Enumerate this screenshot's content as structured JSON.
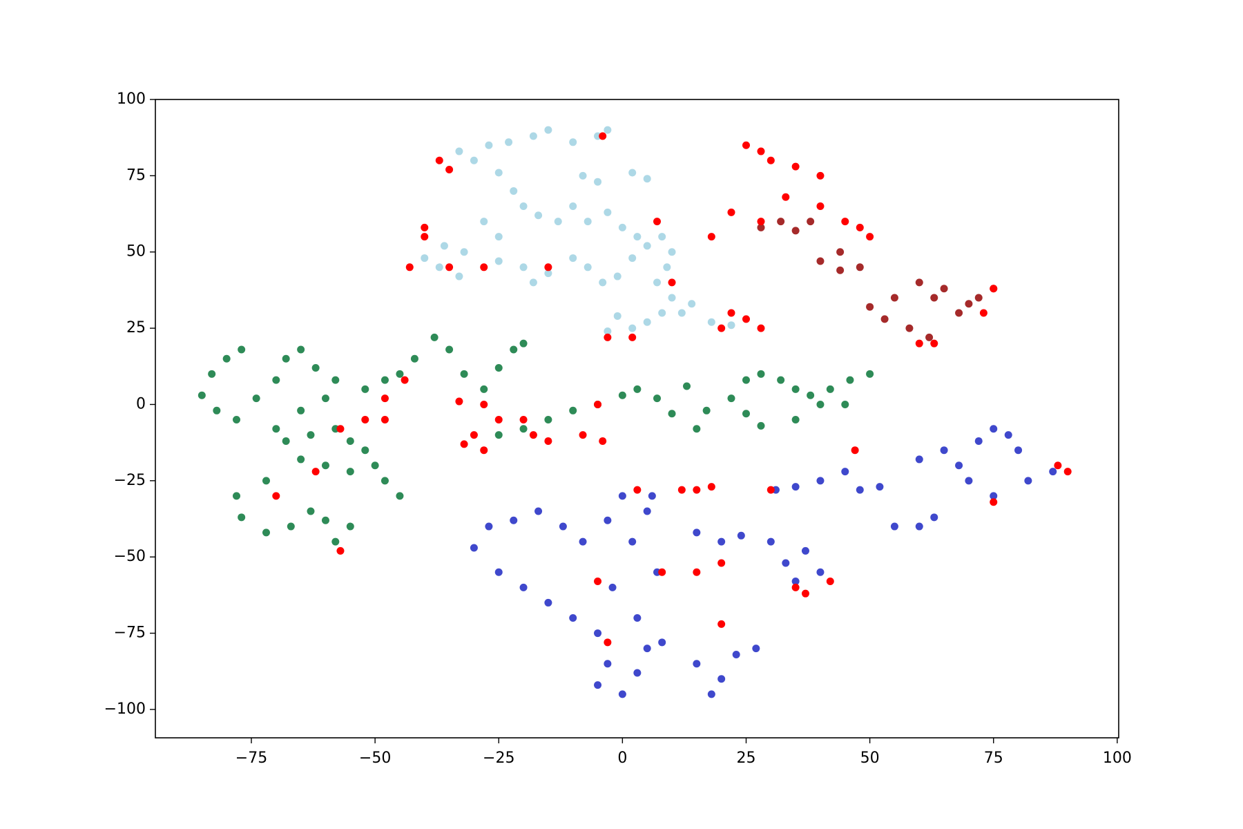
{
  "chart_data": {
    "type": "scatter",
    "xlim": [
      -94.4,
      100.3
    ],
    "ylim": [
      -109.3,
      100
    ],
    "xticks": [
      {
        "value": -75,
        "label": "−75"
      },
      {
        "value": -50,
        "label": "−50"
      },
      {
        "value": -25,
        "label": "−25"
      },
      0,
      25,
      50,
      75,
      100
    ],
    "yticks": [
      {
        "value": -100,
        "label": "−100"
      },
      {
        "value": -75,
        "label": "−75"
      },
      {
        "value": -50,
        "label": "−50"
      },
      {
        "value": -25,
        "label": "−25"
      },
      0,
      25,
      50,
      75,
      100
    ],
    "grid": false,
    "series": [
      {
        "color": "#add8e6",
        "x": [
          -33,
          -30,
          -27,
          -23,
          -18,
          -15,
          -10,
          -5,
          -3,
          -8,
          -5,
          2,
          5,
          -25,
          -22,
          -20,
          -17,
          -13,
          -10,
          -7,
          -3,
          0,
          3,
          -28,
          -25,
          -32,
          -36,
          -40,
          -37,
          -33,
          -25,
          -20,
          -18,
          -15,
          -10,
          -7,
          -4,
          -1,
          2,
          5,
          8,
          10,
          9,
          7,
          10,
          12,
          14,
          8,
          5,
          2,
          -3,
          -1,
          18,
          22
        ],
        "y": [
          83,
          80,
          85,
          86,
          88,
          90,
          86,
          88,
          90,
          75,
          73,
          76,
          74,
          76,
          70,
          65,
          62,
          60,
          65,
          60,
          63,
          58,
          55,
          60,
          55,
          50,
          52,
          48,
          45,
          42,
          47,
          45,
          40,
          43,
          48,
          45,
          40,
          42,
          48,
          52,
          55,
          50,
          45,
          40,
          35,
          30,
          33,
          30,
          27,
          25,
          24,
          29,
          27,
          26
        ]
      },
      {
        "color": "#2e8b57",
        "x": [
          -85,
          -83,
          -80,
          -77,
          -82,
          -78,
          -74,
          -70,
          -68,
          -65,
          -62,
          -58,
          -60,
          -65,
          -70,
          -68,
          -63,
          -58,
          -55,
          -52,
          -50,
          -48,
          -45,
          -55,
          -60,
          -65,
          -72,
          -78,
          -77,
          -72,
          -67,
          -63,
          -60,
          -58,
          -55,
          -52,
          -48,
          -45,
          -42,
          -38,
          -35,
          -32,
          -28,
          -25,
          -22,
          -20,
          -25,
          -20,
          -15,
          -10,
          -5,
          0,
          3,
          7,
          10,
          13,
          15,
          17,
          22,
          25,
          28,
          32,
          35,
          38,
          40,
          35,
          28,
          25,
          42,
          46,
          50,
          45
        ],
        "y": [
          3,
          10,
          15,
          18,
          -2,
          -5,
          2,
          8,
          15,
          18,
          12,
          8,
          2,
          -2,
          -8,
          -12,
          -10,
          -8,
          -12,
          -15,
          -20,
          -25,
          -30,
          -22,
          -20,
          -18,
          -25,
          -30,
          -37,
          -42,
          -40,
          -35,
          -38,
          -45,
          -40,
          5,
          8,
          10,
          15,
          22,
          18,
          10,
          5,
          12,
          18,
          20,
          -10,
          -8,
          -5,
          -2,
          0,
          3,
          5,
          2,
          -3,
          6,
          -8,
          -2,
          2,
          8,
          10,
          8,
          5,
          3,
          0,
          -5,
          -7,
          -3,
          5,
          8,
          10,
          0
        ]
      },
      {
        "color": "#3f48cc",
        "x": [
          -30,
          -27,
          -25,
          -22,
          -20,
          -17,
          -15,
          -12,
          -10,
          -8,
          -5,
          -3,
          0,
          2,
          5,
          7,
          -2,
          3,
          6,
          -5,
          -3,
          0,
          3,
          5,
          8,
          15,
          18,
          20,
          23,
          27,
          15,
          20,
          24,
          30,
          33,
          37,
          40,
          35,
          31,
          35,
          40,
          45,
          48,
          52,
          55,
          60,
          63,
          60,
          65,
          68,
          72,
          75,
          78,
          80,
          70,
          75,
          82,
          87
        ],
        "y": [
          -47,
          -40,
          -55,
          -38,
          -60,
          -35,
          -65,
          -40,
          -70,
          -45,
          -75,
          -38,
          -30,
          -45,
          -35,
          -55,
          -60,
          -70,
          -30,
          -92,
          -85,
          -95,
          -88,
          -80,
          -78,
          -85,
          -95,
          -90,
          -82,
          -80,
          -42,
          -45,
          -43,
          -45,
          -52,
          -48,
          -55,
          -58,
          -28,
          -27,
          -25,
          -22,
          -28,
          -27,
          -40,
          -40,
          -37,
          -18,
          -15,
          -20,
          -12,
          -8,
          -10,
          -15,
          -25,
          -30,
          -25,
          -22
        ]
      },
      {
        "color": "#a52a2a",
        "x": [
          28,
          32,
          35,
          38,
          40,
          44,
          48,
          44,
          55,
          60,
          63,
          68,
          72,
          75,
          58,
          62,
          50,
          53,
          65,
          70
        ],
        "y": [
          58,
          60,
          57,
          60,
          47,
          44,
          45,
          50,
          35,
          40,
          35,
          30,
          35,
          38,
          25,
          22,
          32,
          28,
          38,
          33
        ]
      },
      {
        "color": "#ff0000",
        "x": [
          -37,
          -35,
          -40,
          -43,
          -35,
          -28,
          -15,
          -40,
          -4,
          7,
          10,
          -3,
          2,
          22,
          25,
          28,
          20,
          25,
          28,
          30,
          35,
          40,
          40,
          45,
          50,
          48,
          22,
          33,
          28,
          18,
          60,
          63,
          75,
          73,
          -57,
          -70,
          -62,
          -52,
          -48,
          -57,
          -48,
          -32,
          -30,
          -28,
          -25,
          -15,
          -20,
          -8,
          -5,
          -33,
          -28,
          -44,
          15,
          3,
          18,
          12,
          20,
          15,
          37,
          35,
          42,
          8,
          -5,
          -3,
          20,
          90,
          88,
          75,
          47,
          30,
          -18,
          -4
        ],
        "y": [
          80,
          77,
          55,
          45,
          45,
          45,
          45,
          58,
          88,
          60,
          40,
          22,
          22,
          30,
          28,
          25,
          25,
          85,
          83,
          80,
          78,
          75,
          65,
          60,
          55,
          58,
          63,
          68,
          60,
          55,
          20,
          20,
          38,
          30,
          -48,
          -30,
          -22,
          -5,
          2,
          -8,
          -5,
          -13,
          -10,
          -15,
          -5,
          -12,
          -5,
          -10,
          0,
          1,
          0,
          8,
          -28,
          -28,
          -27,
          -28,
          -52,
          -55,
          -62,
          -60,
          -58,
          -55,
          -58,
          -78,
          -72,
          -22,
          -20,
          -32,
          -15,
          -28,
          -10,
          -12
        ]
      }
    ]
  }
}
